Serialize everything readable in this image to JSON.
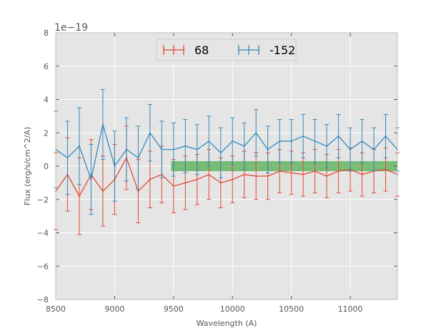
{
  "chart_data": {
    "type": "line",
    "subtype": "errorbar",
    "title": "",
    "xlabel": "Wavelength (A)",
    "ylabel": "Flux (erg/s/cm^2/A)",
    "offset_label": "1e−19",
    "xlim": [
      8500,
      11400
    ],
    "ylim": [
      -8,
      8
    ],
    "xticks": [
      8500,
      9000,
      9500,
      10000,
      10500,
      11000
    ],
    "xtick_labels": [
      "8500",
      "9000",
      "9500",
      "10000",
      "10500",
      "11000"
    ],
    "yticks": [
      -8,
      -6,
      -4,
      -2,
      0,
      2,
      4,
      6,
      8
    ],
    "ytick_labels": [
      "−8",
      "−6",
      "−4",
      "−2",
      "0",
      "2",
      "4",
      "6",
      "8"
    ],
    "grid": true,
    "legend_position": "top-center",
    "shaded_band": {
      "x_start": 9480,
      "x_end": 11400,
      "y_low": -0.3,
      "y_high": 0.3,
      "color": "#2ca02c"
    },
    "series": [
      {
        "name": "68",
        "color": "#e24a33",
        "x": [
          8500,
          8600,
          8700,
          8800,
          8900,
          9000,
          9100,
          9200,
          9300,
          9400,
          9500,
          9600,
          9700,
          9800,
          9900,
          10000,
          10100,
          10200,
          10300,
          10400,
          10500,
          10600,
          10700,
          10800,
          10900,
          11000,
          11100,
          11200,
          11300,
          11400
        ],
        "y": [
          -1.5,
          -0.5,
          -1.8,
          -0.5,
          -1.5,
          -0.8,
          0.5,
          -1.5,
          -0.8,
          -0.5,
          -1.2,
          -1.0,
          -0.8,
          -0.5,
          -1.0,
          -0.8,
          -0.5,
          -0.6,
          -0.6,
          -0.3,
          -0.4,
          -0.5,
          -0.3,
          -0.6,
          -0.3,
          -0.2,
          -0.5,
          -0.3,
          -0.2,
          -0.5
        ],
        "yerr": [
          2.3,
          2.2,
          2.3,
          2.1,
          2.1,
          2.1,
          1.9,
          1.9,
          1.7,
          1.7,
          1.6,
          1.6,
          1.5,
          1.5,
          1.5,
          1.4,
          1.4,
          1.4,
          1.4,
          1.3,
          1.3,
          1.3,
          1.3,
          1.3,
          1.3,
          1.3,
          1.3,
          1.3,
          1.3,
          1.3
        ]
      },
      {
        "name": "-152",
        "color": "#348abd",
        "x": [
          8500,
          8600,
          8700,
          8800,
          8900,
          9000,
          9100,
          9200,
          9300,
          9400,
          9500,
          9600,
          9700,
          9800,
          9900,
          10000,
          10100,
          10200,
          10300,
          10400,
          10500,
          10600,
          10700,
          10800,
          10900,
          11000,
          11100,
          11200,
          11300,
          11400
        ],
        "y": [
          1.0,
          0.5,
          1.2,
          -0.8,
          2.5,
          0.0,
          1.0,
          0.5,
          2.0,
          1.0,
          1.0,
          1.2,
          1.0,
          1.5,
          0.8,
          1.5,
          1.2,
          2.0,
          1.0,
          1.5,
          1.5,
          1.8,
          1.5,
          1.2,
          1.8,
          1.0,
          1.5,
          1.0,
          1.8,
          1.0
        ],
        "yerr": [
          2.3,
          2.2,
          2.3,
          2.1,
          2.1,
          2.1,
          1.9,
          1.9,
          1.7,
          1.7,
          1.6,
          1.6,
          1.5,
          1.5,
          1.5,
          1.4,
          1.4,
          1.4,
          1.4,
          1.3,
          1.3,
          1.3,
          1.3,
          1.3,
          1.3,
          1.3,
          1.3,
          1.3,
          1.3,
          1.3
        ]
      }
    ]
  }
}
